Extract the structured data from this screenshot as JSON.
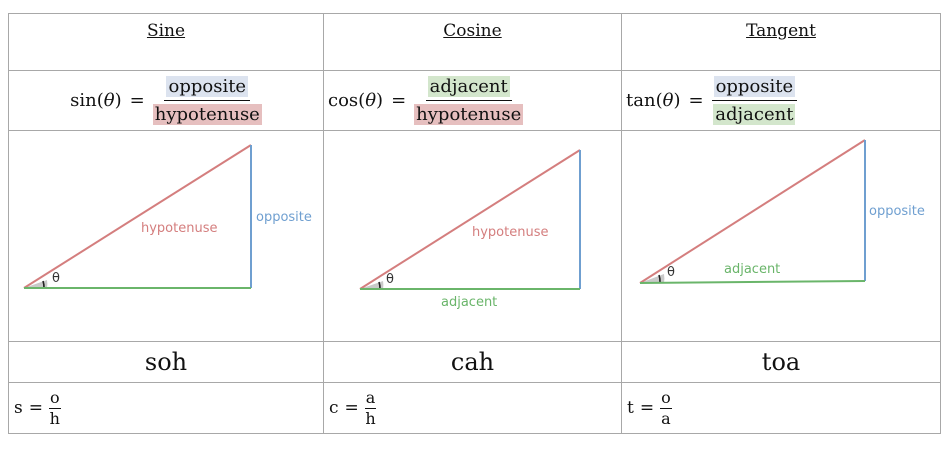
{
  "columns": [
    {
      "heading": "Sine",
      "formula": {
        "fn": "sin",
        "arg": "θ",
        "numerator": "opposite",
        "denominator": "hypotenuse"
      },
      "triangle": {
        "hypotenuse_label": "hypotenuse",
        "vertical_label": "opposite",
        "angle_label": "θ"
      },
      "mnemonic": "soh",
      "abbrev": {
        "lhs": "s",
        "numerator": "o",
        "denominator": "h"
      }
    },
    {
      "heading": "Cosine",
      "formula": {
        "fn": "cos",
        "arg": "θ",
        "numerator": "adjacent",
        "denominator": "hypotenuse"
      },
      "triangle": {
        "hypotenuse_label": "hypotenuse",
        "base_label": "adjacent",
        "angle_label": "θ"
      },
      "mnemonic": "cah",
      "abbrev": {
        "lhs": "c",
        "numerator": "a",
        "denominator": "h"
      }
    },
    {
      "heading": "Tangent",
      "formula": {
        "fn": "tan",
        "arg": "θ",
        "numerator": "opposite",
        "denominator": "adjacent"
      },
      "triangle": {
        "base_label": "adjacent",
        "vertical_label": "opposite",
        "angle_label": "θ"
      },
      "mnemonic": "toa",
      "abbrev": {
        "lhs": "t",
        "numerator": "o",
        "denominator": "a"
      }
    }
  ],
  "colors": {
    "hypotenuse": "#d47e7e",
    "opposite": "#6f9fd0",
    "adjacent": "#6ab56a",
    "angle_fill": "#c9c9c9",
    "highlight_opposite": "#dce3ef",
    "highlight_adjacent": "#d3e6cc",
    "highlight_hypotenuse": "#e6bfbf"
  }
}
